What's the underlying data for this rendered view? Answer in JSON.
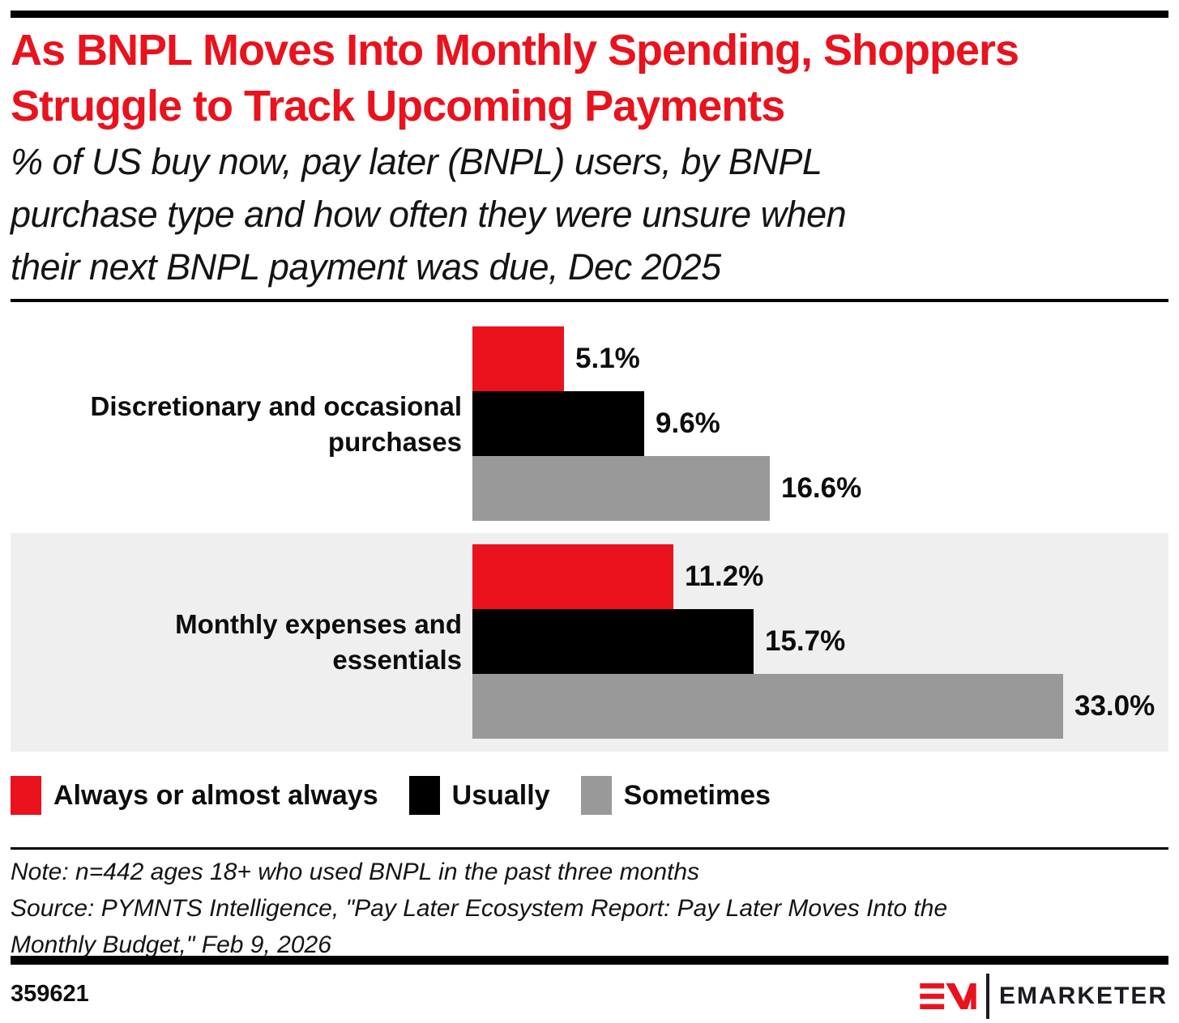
{
  "colors": {
    "brand_red": "#e9121d",
    "black": "#000000",
    "gray": "#999999",
    "band_bg": "#efeff0",
    "text": "#0d0d0d"
  },
  "header": {
    "title_lines": [
      "As BNPL Moves Into Monthly Spending, Shoppers",
      "Struggle to Track Upcoming Payments"
    ],
    "subtitle_lines": [
      "% of US buy now, pay later (BNPL) users, by BNPL",
      "purchase type and how often they were unsure when",
      "their next BNPL payment was due, Dec 2025"
    ]
  },
  "chart_data": {
    "type": "bar",
    "orientation": "horizontal",
    "unit": "%",
    "xlim": [
      0,
      35
    ],
    "grid": false,
    "legend_position": "bottom",
    "title": "As BNPL Moves Into Monthly Spending, Shoppers Struggle to Track Upcoming Payments",
    "subtitle": "% of US buy now, pay later (BNPL) users, by BNPL purchase type and how often they were unsure when their next BNPL payment was due, Dec 2025",
    "categories": [
      {
        "label": "Discretionary and occasional purchases",
        "label_lines": [
          "Discretionary and occasional",
          "purchases"
        ],
        "highlighted": false
      },
      {
        "label": "Monthly expenses and essentials",
        "label_lines": [
          "Monthly expenses and",
          "essentials"
        ],
        "highlighted": true
      }
    ],
    "series": [
      {
        "name": "Always or almost always",
        "color": "#e9121d",
        "values": [
          5.1,
          11.2
        ]
      },
      {
        "name": "Usually",
        "color": "#000000",
        "values": [
          9.6,
          15.7
        ]
      },
      {
        "name": "Sometimes",
        "color": "#999999",
        "values": [
          16.6,
          33.0
        ]
      }
    ],
    "value_labels": [
      [
        "5.1%",
        "9.6%",
        "16.6%"
      ],
      [
        "11.2%",
        "15.7%",
        "33.0%"
      ]
    ]
  },
  "footnote": {
    "note_lines": [
      "Note: n=442 ages 18+ who used BNPL in the past three months",
      "Source: PYMNTS Intelligence, \"Pay Later Ecosystem Report: Pay Later Moves Into the",
      "Monthly Budget,\" Feb 9, 2026"
    ]
  },
  "footer": {
    "chart_id": "359621",
    "brand": "EMARKETER"
  }
}
